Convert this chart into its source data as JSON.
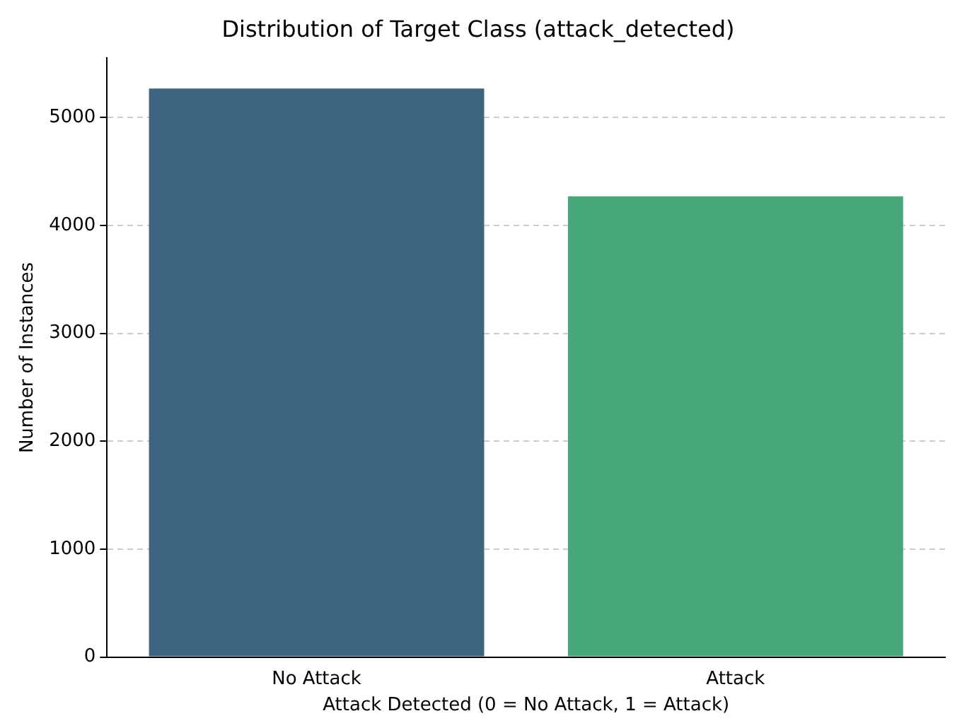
{
  "chart_data": {
    "type": "bar",
    "title": "Distribution of Target Class (attack_detected)",
    "xlabel": "Attack Detected (0 = No Attack, 1 = Attack)",
    "ylabel": "Number of Instances",
    "categories": [
      "No Attack",
      "Attack"
    ],
    "values": [
      5270,
      4270
    ],
    "colors": [
      "#3d6580",
      "#45a777"
    ],
    "ylim": [
      0,
      5550
    ],
    "yticks": [
      0,
      1000,
      2000,
      3000,
      4000,
      5000
    ],
    "grid": "y"
  }
}
